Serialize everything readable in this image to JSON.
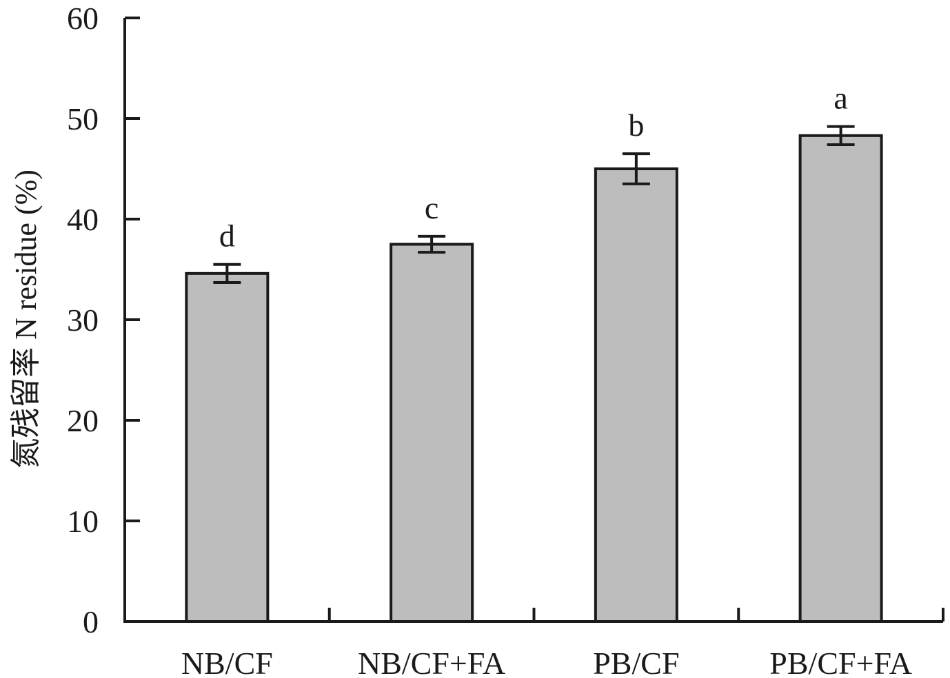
{
  "chart_data": {
    "type": "bar",
    "title": "",
    "xlabel": "",
    "ylabel": "氮残留率 N residue (%)",
    "ylim": [
      0,
      60
    ],
    "yticks": [
      0,
      10,
      20,
      30,
      40,
      50,
      60
    ],
    "grid": false,
    "categories": [
      "NB/CF",
      "NB/CF+FA",
      "PB/CF",
      "PB/CF+FA"
    ],
    "values": [
      34.6,
      37.5,
      45.0,
      48.3
    ],
    "errors": [
      0.9,
      0.8,
      1.5,
      0.9
    ],
    "significance": [
      "d",
      "c",
      "b",
      "a"
    ],
    "bar_color": "#bdbdbd",
    "edge_color": "#1a1a1a"
  }
}
